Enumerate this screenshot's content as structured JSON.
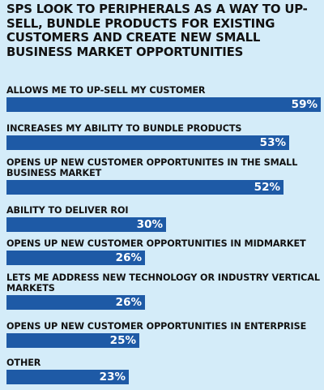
{
  "chart_data": {
    "type": "bar",
    "orientation": "horizontal",
    "title": "SPS LOOK TO PERIPHERALS AS A WAY TO UP-SELL, BUNDLE PRODUCTS FOR EXISTING CUSTOMERS AND CREATE NEW SMALL BUSINESS MARKET OPPORTUNITIES",
    "categories": [
      "ALLOWS ME TO UP-SELL MY CUSTOMER",
      "INCREASES MY ABILITY TO BUNDLE PRODUCTS",
      "OPENS UP NEW CUSTOMER OPPORTUNITES IN THE SMALL BUSINESS MARKET",
      "ABILITY TO DELIVER ROI",
      "OPENS UP NEW CUSTOMER OPPORTUNITIES IN MIDMARKET",
      "LETS ME ADDRESS NEW TECHNOLOGY OR INDUSTRY VERTICAL MARKETS",
      "OPENS UP NEW CUSTOMER OPPORTUNITIES IN ENTERPRISE",
      "OTHER"
    ],
    "values": [
      59,
      53,
      52,
      30,
      26,
      26,
      25,
      23
    ],
    "value_labels": [
      "59%",
      "53%",
      "52%",
      "30%",
      "26%",
      "26%",
      "25%",
      "23%"
    ],
    "xlim": [
      0,
      59
    ],
    "grid": false,
    "bar_color": "#1e5aa6",
    "background_color": "#d4ecf9"
  }
}
